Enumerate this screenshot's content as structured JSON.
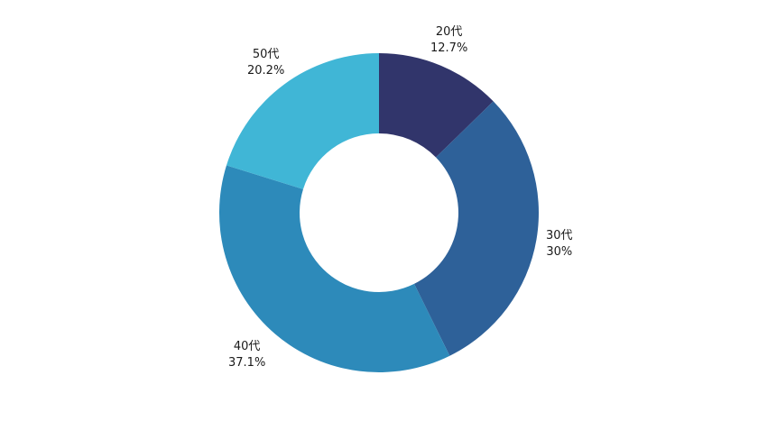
{
  "chart_data": {
    "type": "pie",
    "style": "donut",
    "categories": [
      "20代",
      "30代",
      "40代",
      "50代"
    ],
    "values": [
      12.7,
      30,
      37.1,
      20.2
    ],
    "value_labels": [
      "12.7%",
      "30%",
      "37.1%",
      "20.2%"
    ],
    "colors": [
      "#31356b",
      "#2e6199",
      "#2d8aba",
      "#40b6d6"
    ],
    "start": "12 o'clock",
    "direction": "clockwise",
    "legend": "none"
  }
}
